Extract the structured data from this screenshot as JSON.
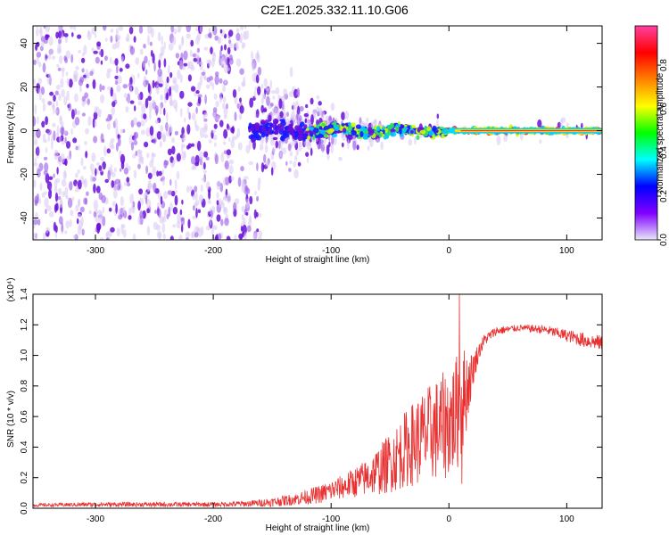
{
  "title": "C2E1.2025.332.11.10.G06",
  "colors": {
    "spectrum_scatter": "#6a1bd6",
    "snr_line": "#e83030",
    "axis": "#000000"
  },
  "chart_data": [
    {
      "type": "heatmap",
      "name": "spectrogram",
      "xlabel": "Height of straight line (km)",
      "ylabel": "Frequency (Hz)",
      "xlim": [
        -353,
        130
      ],
      "ylim": [
        -50,
        48
      ],
      "xticks": [
        -300,
        -200,
        -100,
        0,
        100
      ],
      "xtick_labels": [
        "-300",
        "-200",
        "-100",
        "0",
        "100"
      ],
      "yticks": [
        -40,
        -20,
        0,
        20,
        40
      ],
      "ytick_labels": [
        "-40",
        "-20",
        "0",
        "20",
        "40"
      ],
      "signal_centerline_hz": 0,
      "colorbar": {
        "label": "Normalized spectral amplitude",
        "range": [
          0,
          0.98
        ],
        "ticks": [
          0.0,
          0.2,
          0.4,
          0.6,
          0.8
        ],
        "tick_labels": [
          "0.0",
          "0.2",
          "0.4",
          "0.6",
          "0.8"
        ],
        "colormap": [
          "#e8e8f8",
          "#8000ff",
          "#0000ff",
          "#00ffff",
          "#00ff00",
          "#ffff00",
          "#ff8000",
          "#ff0000",
          "#ff40a0"
        ]
      }
    },
    {
      "type": "line",
      "name": "snr",
      "xlabel": "Height of straight line (km)",
      "ylabel": "SNR (10 * v/v)",
      "y_multiplier": "(x10⁴)",
      "xlim": [
        -353,
        130
      ],
      "ylim": [
        0,
        1.4
      ],
      "xticks": [
        -300,
        -200,
        -100,
        0,
        100
      ],
      "xtick_labels": [
        "-300",
        "-200",
        "-100",
        "0",
        "100"
      ],
      "yticks": [
        0.0,
        0.2,
        0.4,
        0.6,
        0.8,
        1.0,
        1.2,
        1.4
      ],
      "ytick_labels": [
        "0.0",
        "0.2",
        "0.4",
        "0.6",
        "0.8",
        "1.0",
        "1.2",
        "1.4"
      ],
      "envelope": {
        "x": [
          -353,
          -300,
          -250,
          -200,
          -170,
          -150,
          -130,
          -110,
          -90,
          -70,
          -55,
          -45,
          -35,
          -25,
          -15,
          -8,
          -2,
          5,
          10,
          14,
          20,
          25,
          30,
          40,
          60,
          80,
          100,
          115,
          130
        ],
        "mean": [
          0.02,
          0.025,
          0.025,
          0.025,
          0.03,
          0.04,
          0.06,
          0.09,
          0.14,
          0.2,
          0.27,
          0.33,
          0.4,
          0.45,
          0.5,
          0.52,
          0.55,
          0.6,
          0.68,
          0.75,
          0.9,
          1.02,
          1.1,
          1.16,
          1.18,
          1.17,
          1.13,
          1.1,
          1.08
        ],
        "spread": [
          0.01,
          0.015,
          0.015,
          0.015,
          0.02,
          0.03,
          0.04,
          0.06,
          0.08,
          0.12,
          0.18,
          0.22,
          0.26,
          0.3,
          0.32,
          0.35,
          0.36,
          0.38,
          0.4,
          0.3,
          0.12,
          0.06,
          0.04,
          0.03,
          0.02,
          0.03,
          0.04,
          0.05,
          0.05
        ]
      },
      "peak": {
        "x": 9,
        "y": 1.4
      },
      "dip": {
        "x": 11,
        "y": 0.16
      }
    }
  ]
}
